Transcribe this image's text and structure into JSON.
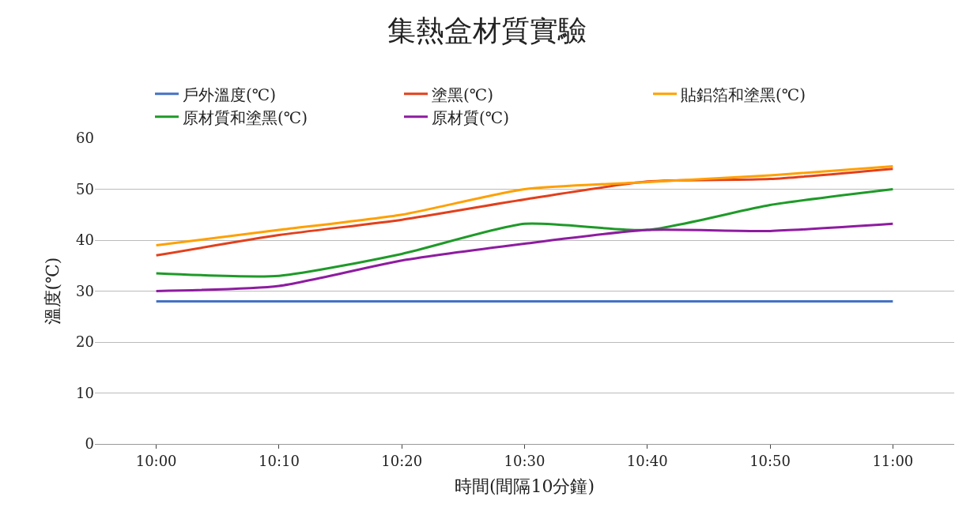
{
  "chart_data": {
    "type": "line",
    "title": "集熱盒材質實驗",
    "xlabel": "時間(間隔10分鐘)",
    "ylabel": "溫度(℃)",
    "categories": [
      "10:00",
      "10:10",
      "10:20",
      "10:30",
      "10:40",
      "10:50",
      "11:00"
    ],
    "series": [
      {
        "name": "戶外溫度(℃)",
        "color": "#4472c4",
        "values": [
          28,
          28,
          28,
          28,
          28,
          28,
          28
        ]
      },
      {
        "name": "塗黑(℃)",
        "color": "#e2401c",
        "values": [
          37,
          41,
          44,
          48,
          51.5,
          52,
          54
        ]
      },
      {
        "name": "貼鋁箔和塗黑(℃)",
        "color": "#ffa000",
        "values": [
          39,
          42,
          45,
          50,
          51.4,
          52.7,
          54.5
        ]
      },
      {
        "name": "原材質和塗黑(℃)",
        "color": "#1e9a28",
        "values": [
          33.5,
          33,
          37.3,
          43.2,
          42,
          46.9,
          50
        ]
      },
      {
        "name": "原材質(℃)",
        "color": "#8e1ca0",
        "values": [
          30,
          31,
          36,
          39.3,
          42,
          41.8,
          43.2
        ]
      }
    ],
    "ylim": [
      0,
      60
    ],
    "yticks": [
      0,
      10,
      20,
      30,
      40,
      50,
      60
    ],
    "grid": "y",
    "legend": "top",
    "marker": "none",
    "line_style": "solid"
  }
}
